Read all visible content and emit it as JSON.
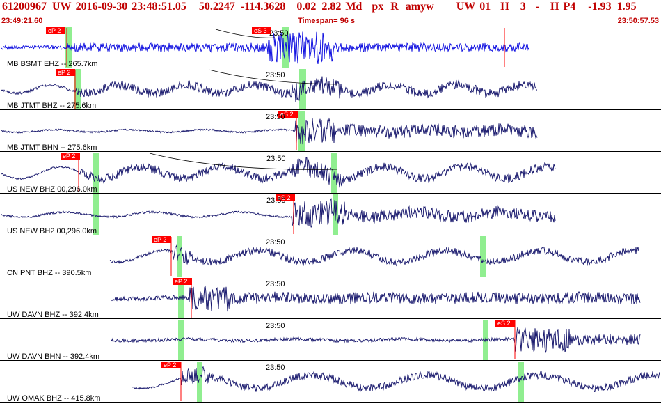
{
  "header": {
    "fields": [
      {
        "text": "61200967"
      },
      {
        "text": "UW"
      },
      {
        "text": "2016-09-30"
      },
      {
        "text": "23:48:51.05"
      },
      {
        "text": "50.2247"
      },
      {
        "text": "-114.3628"
      },
      {
        "text": "0.02"
      },
      {
        "text": "2.82"
      },
      {
        "text": "Md"
      },
      {
        "text": "px"
      },
      {
        "text": "R"
      },
      {
        "text": "amyw"
      },
      {
        "text": "UW"
      },
      {
        "text": "01"
      },
      {
        "text": "H"
      },
      {
        "text": "3"
      },
      {
        "text": "-"
      },
      {
        "text": "H"
      },
      {
        "text": "P4"
      },
      {
        "text": "-1.93"
      },
      {
        "text": "1.95"
      }
    ],
    "start_time": "23:49:21.60",
    "timespan": "Timespan=  96 s",
    "end_time": "23:50:57.53"
  },
  "colors": {
    "accent": "#c00000",
    "trace": "#1a1a6e",
    "trace_first": "#1010e0",
    "pick_bg": "#ff0000",
    "window": "#90ee90"
  },
  "traces": [
    {
      "label": "MB BSMT EHZ -- 265.7km",
      "time_mark": "23:50",
      "pick": "eP 2",
      "pick2": "eS 3"
    },
    {
      "label": "MB JTMT BHZ -- 275.6km",
      "time_mark": "23:50",
      "pick": "eP 2"
    },
    {
      "label": "MB JTMT BHN -- 275.6km",
      "time_mark": "23:50",
      "pick": "eS 2"
    },
    {
      "label": "US NEW BHZ 00,296.0km",
      "time_mark": "23:50",
      "pick": "eP 2"
    },
    {
      "label": "US NEW BH2 00,296.0km",
      "time_mark": "23:50",
      "pick": "eS 2"
    },
    {
      "label": "CN PNT BHZ -- 390.5km",
      "time_mark": "23:50",
      "pick": "eP 2"
    },
    {
      "label": "UW DAVN BHZ -- 392.4km",
      "time_mark": "23:50",
      "pick": "eP 2"
    },
    {
      "label": "UW DAVN BHN -- 392.4km",
      "time_mark": "23:50",
      "pick": "eS 2"
    },
    {
      "label": "UW OMAK BHZ -- 415.8km",
      "time_mark": "23:50",
      "pick": "eP 2"
    }
  ]
}
